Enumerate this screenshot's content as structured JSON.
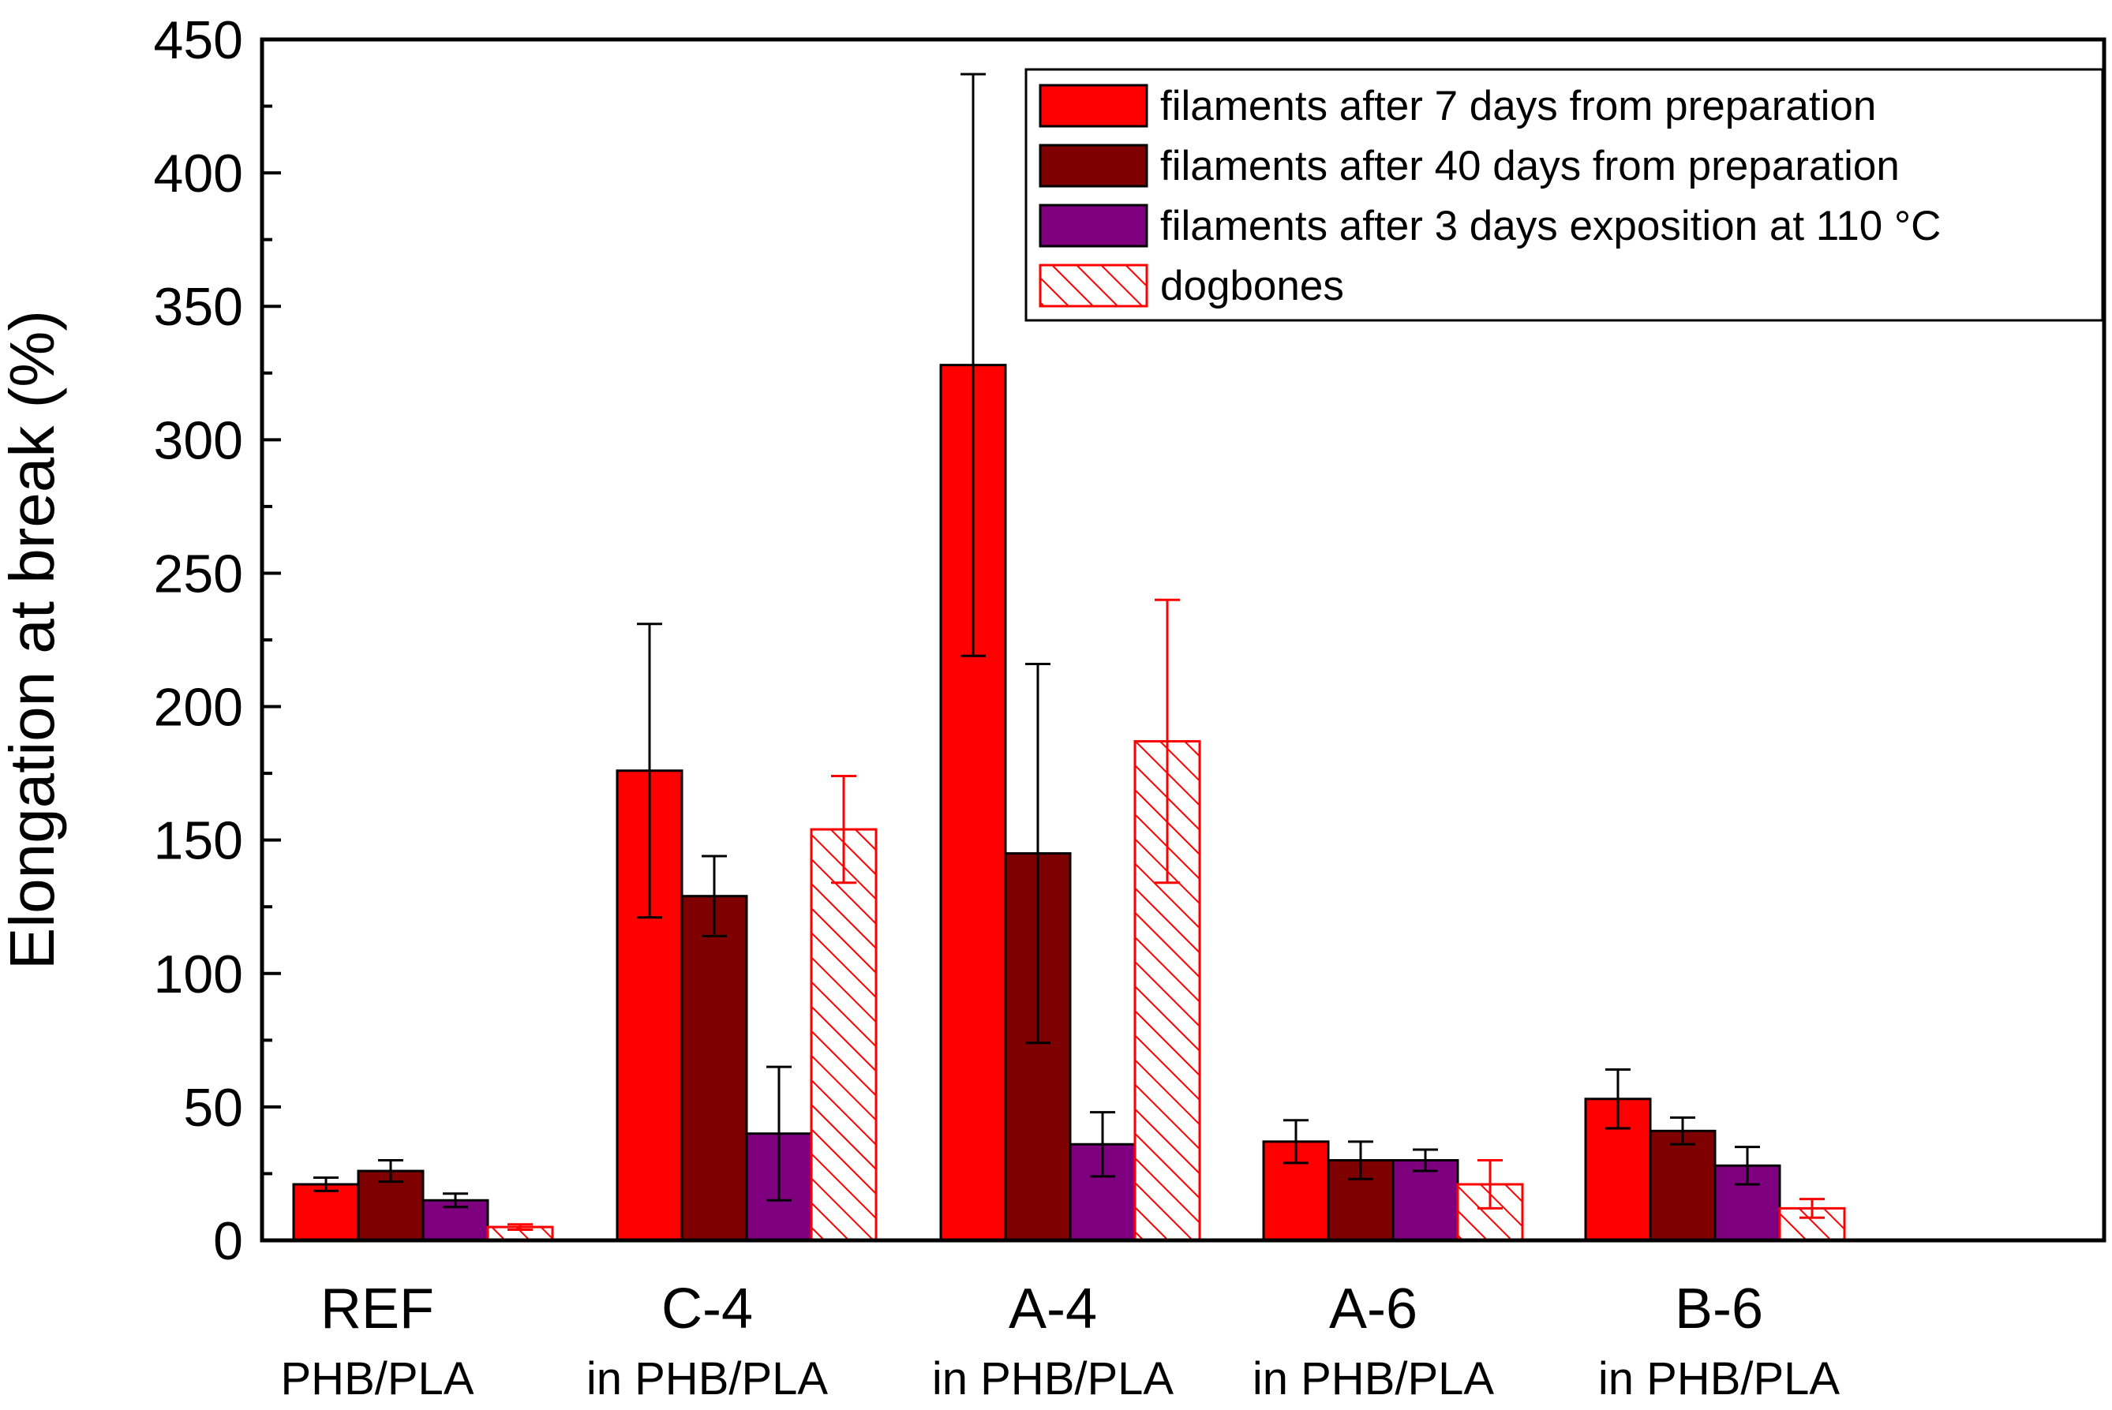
{
  "chart_data": {
    "type": "bar",
    "title": "",
    "xlabel": "",
    "ylabel": "Elongation at break (%)",
    "ylim": [
      0,
      450
    ],
    "yticks": [
      0,
      50,
      100,
      150,
      200,
      250,
      300,
      350,
      400,
      450
    ],
    "grid": false,
    "legend_position": "top-right",
    "categories": [
      {
        "name": "REF",
        "sub": "PHB/PLA"
      },
      {
        "name": "C-4",
        "sub": "in PHB/PLA"
      },
      {
        "name": "A-4",
        "sub": "in PHB/PLA"
      },
      {
        "name": "A-6",
        "sub": "in PHB/PLA"
      },
      {
        "name": "B-6",
        "sub": "in PHB/PLA"
      }
    ],
    "series": [
      {
        "name": "filaments after 7 days from preparation",
        "color": "#ff0000",
        "pattern": "solid",
        "values": [
          21,
          176,
          328,
          37,
          53
        ],
        "errors": [
          2.5,
          55,
          109,
          8,
          11
        ]
      },
      {
        "name": "filaments after  40 days from preparation",
        "color": "#7f0000",
        "pattern": "solid",
        "values": [
          26,
          129,
          145,
          30,
          41
        ],
        "errors": [
          4,
          15,
          71,
          7,
          5
        ]
      },
      {
        "name": "filaments after 3 days exposition at 110 °C",
        "color": "#7f007f",
        "pattern": "solid",
        "values": [
          15,
          40,
          36,
          30,
          28
        ],
        "errors": [
          2.5,
          25,
          12,
          4,
          7
        ]
      },
      {
        "name": "dogbones",
        "color": "#ff0000",
        "pattern": "hatched",
        "values": [
          5,
          154,
          187,
          21,
          12
        ],
        "errors": [
          1,
          20,
          53,
          9,
          3.5
        ]
      }
    ]
  }
}
